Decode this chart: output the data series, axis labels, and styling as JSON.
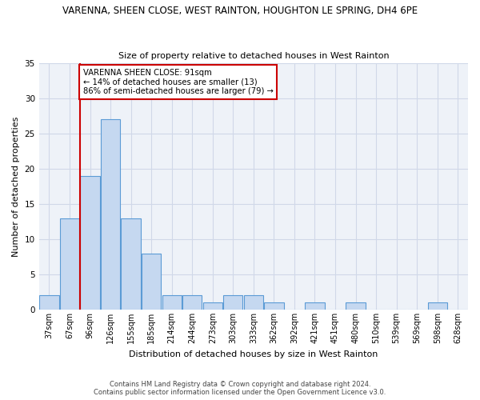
{
  "title": "VARENNA, SHEEN CLOSE, WEST RAINTON, HOUGHTON LE SPRING, DH4 6PE",
  "subtitle": "Size of property relative to detached houses in West Rainton",
  "xlabel": "Distribution of detached houses by size in West Rainton",
  "ylabel": "Number of detached properties",
  "categories": [
    "37sqm",
    "67sqm",
    "96sqm",
    "126sqm",
    "155sqm",
    "185sqm",
    "214sqm",
    "244sqm",
    "273sqm",
    "303sqm",
    "333sqm",
    "362sqm",
    "392sqm",
    "421sqm",
    "451sqm",
    "480sqm",
    "510sqm",
    "539sqm",
    "569sqm",
    "598sqm",
    "628sqm"
  ],
  "values": [
    2,
    13,
    19,
    27,
    13,
    8,
    2,
    2,
    1,
    2,
    2,
    1,
    0,
    1,
    0,
    1,
    0,
    0,
    0,
    1,
    0
  ],
  "bar_color": "#c5d8f0",
  "bar_edge_color": "#5b9bd5",
  "red_line_x": 1.5,
  "annotation_text": "VARENNA SHEEN CLOSE: 91sqm\n← 14% of detached houses are smaller (13)\n86% of semi-detached houses are larger (79) →",
  "annotation_box_color": "#ffffff",
  "annotation_box_edge_color": "#cc0000",
  "red_line_color": "#cc0000",
  "grid_color": "#d0d8e8",
  "background_color": "#eef2f8",
  "ylim": [
    0,
    35
  ],
  "yticks": [
    0,
    5,
    10,
    15,
    20,
    25,
    30,
    35
  ],
  "footer_line1": "Contains HM Land Registry data © Crown copyright and database right 2024.",
  "footer_line2": "Contains public sector information licensed under the Open Government Licence v3.0."
}
